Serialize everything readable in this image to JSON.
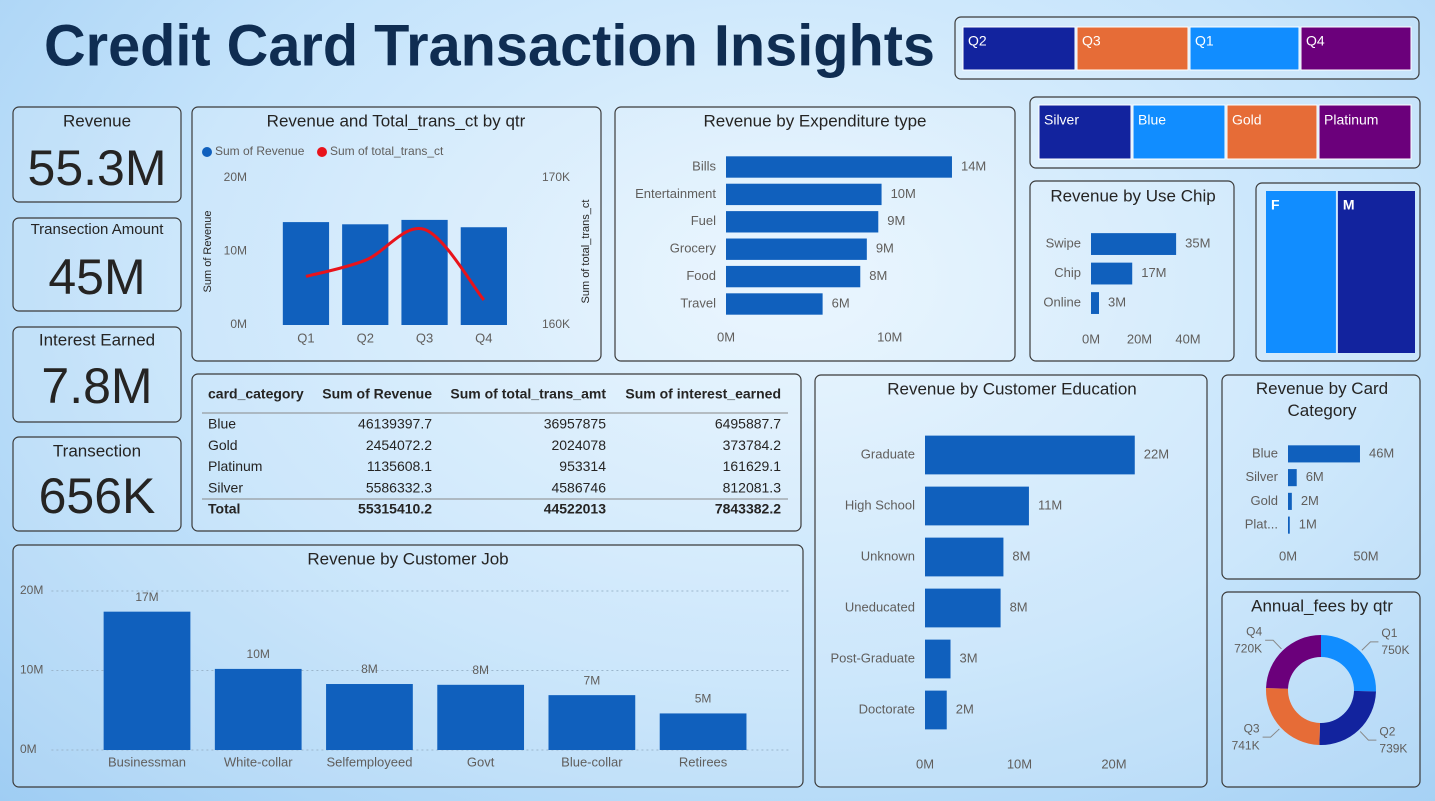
{
  "title": "Credit Card Transaction Insights",
  "quarter_slicer": {
    "items": [
      {
        "label": "Q2",
        "color": "#12239E"
      },
      {
        "label": "Q3",
        "color": "#E66C37"
      },
      {
        "label": "Q1",
        "color": "#118DFF"
      },
      {
        "label": "Q4",
        "color": "#6B007B"
      }
    ]
  },
  "card_slicer": {
    "items": [
      {
        "label": "Silver",
        "color": "#12239E"
      },
      {
        "label": "Blue",
        "color": "#118DFF"
      },
      {
        "label": "Gold",
        "color": "#E66C37"
      },
      {
        "label": "Platinum",
        "color": "#6B007B"
      }
    ]
  },
  "kpis": [
    {
      "label": "Revenue",
      "value": "55.3M"
    },
    {
      "label": "Transection Amount",
      "value": "45M"
    },
    {
      "label": "Interest Earned",
      "value": "7.8M"
    },
    {
      "label": "Transection",
      "value": "656K"
    }
  ],
  "table": {
    "columns": [
      "card_category",
      "Sum of Revenue",
      "Sum of total_trans_amt",
      "Sum of interest_earned"
    ],
    "rows": [
      [
        "Blue",
        46139397.7,
        36957875,
        6495887.7
      ],
      [
        "Gold",
        2454072.2,
        2024078,
        373784.2
      ],
      [
        "Platinum",
        1135608.1,
        953314,
        161629.1
      ],
      [
        "Silver",
        5586332.3,
        4586746,
        812081.3
      ]
    ],
    "total": [
      "Total",
      55315410.2,
      44522013,
      7843382.2
    ]
  },
  "chart_data": [
    {
      "type": "combo",
      "title": "Revenue and Total_trans_ct by qtr",
      "categories": [
        "Q1",
        "Q2",
        "Q3",
        "Q4"
      ],
      "series": [
        {
          "name": "Sum of Revenue",
          "kind": "bar",
          "color": "#1060BD",
          "values": [
            14000000,
            13700000,
            14300000,
            13300000
          ]
        },
        {
          "name": "Sum of total_trans_ct",
          "kind": "line",
          "axis": "y2",
          "color": "#E8131B",
          "values": [
            163300,
            164400,
            166500,
            161700
          ]
        }
      ],
      "ylabel": "Sum of Revenue",
      "y2label": "Sum of total_trans_ct",
      "ylim": [
        0,
        20000000
      ],
      "yticks": [
        {
          "value": 0,
          "label": "0M"
        },
        {
          "value": 10000000,
          "label": "10M"
        },
        {
          "value": 20000000,
          "label": "20M"
        }
      ],
      "y2lim": [
        160000,
        170000
      ],
      "y2ticks": [
        {
          "value": 160000,
          "label": "160K"
        },
        {
          "value": 170000,
          "label": "170K"
        }
      ],
      "legend": "top-left",
      "grid": false
    },
    {
      "type": "bar",
      "orientation": "horizontal",
      "title": "Revenue by Expenditure type",
      "color": "#1060BD",
      "categories": [
        "Bills",
        "Entertainment",
        "Fuel",
        "Grocery",
        "Food",
        "Travel"
      ],
      "values": [
        13800000,
        9500000,
        9300000,
        8600000,
        8200000,
        5900000
      ],
      "value_labels": [
        "14M",
        "10M",
        "9M",
        "9M",
        "8M",
        "6M"
      ],
      "xlim": [
        0,
        16000000
      ],
      "xticks": [
        {
          "value": 0,
          "label": "0M"
        },
        {
          "value": 10000000,
          "label": "10M"
        }
      ]
    },
    {
      "type": "bar",
      "orientation": "horizontal",
      "title": "Revenue by Use Chip",
      "color": "#1060BD",
      "categories": [
        "Swipe",
        "Chip",
        "Online"
      ],
      "values": [
        35100000,
        17000000,
        3300000
      ],
      "value_labels": [
        "35M",
        "17M",
        "3M"
      ],
      "xlim": [
        0,
        40000000
      ],
      "xticks": [
        {
          "value": 0,
          "label": "0M"
        },
        {
          "value": 20000000,
          "label": "20M"
        },
        {
          "value": 40000000,
          "label": "40M"
        }
      ]
    },
    {
      "type": "treemap",
      "categories": [
        "F",
        "M"
      ],
      "values": [
        26300000,
        29000000
      ],
      "colors": [
        "#118DFF",
        "#12239E"
      ]
    },
    {
      "type": "bar",
      "orientation": "horizontal",
      "title": "Revenue by Customer Education",
      "color": "#1060BD",
      "categories": [
        "Graduate",
        "High School",
        "Unknown",
        "Uneducated",
        "Post-Graduate",
        "Doctorate"
      ],
      "values": [
        22200000,
        11000000,
        8300000,
        8000000,
        2700000,
        2300000
      ],
      "value_labels": [
        "22M",
        "11M",
        "8M",
        "8M",
        "3M",
        "2M"
      ],
      "xlim": [
        0,
        22500000
      ],
      "xticks": [
        {
          "value": 0,
          "label": "0M"
        },
        {
          "value": 10000000,
          "label": "10M"
        },
        {
          "value": 20000000,
          "label": "20M"
        }
      ]
    },
    {
      "type": "bar",
      "orientation": "horizontal",
      "title": "Revenue by Card Category",
      "color": "#1060BD",
      "categories": [
        "Blue",
        "Silver",
        "Gold",
        "Plat..."
      ],
      "values": [
        46139397.7,
        5586332.3,
        2454072.2,
        1135608.1
      ],
      "value_labels": [
        "46M",
        "6M",
        "2M",
        "1M"
      ],
      "xlim": [
        0,
        55000000
      ],
      "xticks": [
        {
          "value": 0,
          "label": "0M"
        },
        {
          "value": 50000000,
          "label": "50M"
        }
      ]
    },
    {
      "type": "bar",
      "orientation": "vertical",
      "title": "Revenue by Customer Job",
      "color": "#1060BD",
      "categories": [
        "Businessman",
        "White-collar",
        "Selfemployeed",
        "Govt",
        "Blue-collar",
        "Retirees"
      ],
      "values": [
        17400000,
        10200000,
        8300000,
        8200000,
        6900000,
        4600000
      ],
      "value_labels": [
        "17M",
        "10M",
        "8M",
        "8M",
        "7M",
        "5M"
      ],
      "ylim": [
        0,
        20000000
      ],
      "yticks": [
        {
          "value": 0,
          "label": "0M"
        },
        {
          "value": 10000000,
          "label": "10M"
        },
        {
          "value": 20000000,
          "label": "20M"
        }
      ],
      "grid": true
    },
    {
      "type": "donut",
      "title": "Annual_fees by qtr",
      "categories": [
        "Q1",
        "Q2",
        "Q3",
        "Q4"
      ],
      "values": [
        750000,
        739000,
        741000,
        720000
      ],
      "value_labels": [
        "750K",
        "739K",
        "741K",
        "720K"
      ],
      "colors": [
        "#118DFF",
        "#12239E",
        "#E66C37",
        "#6B007B"
      ]
    }
  ]
}
